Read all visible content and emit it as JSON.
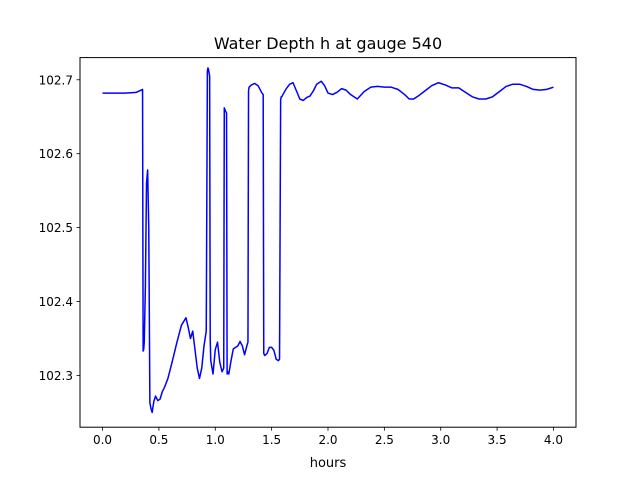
{
  "chart_data": {
    "type": "line",
    "title": "Water Depth h at gauge 540",
    "xlabel": "hours",
    "ylabel": "",
    "xlim": [
      -0.2,
      4.2
    ],
    "ylim": [
      102.23,
      102.73
    ],
    "xticks": [
      0.0,
      0.5,
      1.0,
      1.5,
      2.0,
      2.5,
      3.0,
      3.5,
      4.0
    ],
    "xtick_labels": [
      "0.0",
      "0.5",
      "1.0",
      "1.5",
      "2.0",
      "2.5",
      "3.0",
      "3.5",
      "4.0"
    ],
    "yticks": [
      102.3,
      102.4,
      102.5,
      102.6,
      102.7
    ],
    "ytick_labels": [
      "102.3",
      "102.4",
      "102.5",
      "102.6",
      "102.7"
    ],
    "grid": false,
    "series": [
      {
        "color": "#0000ff",
        "x": [
          0.0,
          0.1,
          0.2,
          0.3,
          0.355,
          0.36,
          0.365,
          0.37,
          0.38,
          0.39,
          0.4,
          0.41,
          0.42,
          0.43,
          0.44,
          0.455,
          0.47,
          0.49,
          0.51,
          0.53,
          0.55,
          0.58,
          0.62,
          0.66,
          0.7,
          0.74,
          0.76,
          0.78,
          0.8,
          0.82,
          0.84,
          0.86,
          0.88,
          0.9,
          0.92,
          0.93,
          0.935,
          0.94,
          0.95,
          0.955,
          0.96,
          0.98,
          1.0,
          1.02,
          1.04,
          1.06,
          1.075,
          1.08,
          1.085,
          1.09,
          1.1,
          1.105,
          1.11,
          1.12,
          1.14,
          1.16,
          1.18,
          1.2,
          1.22,
          1.24,
          1.26,
          1.28,
          1.29,
          1.295,
          1.3,
          1.32,
          1.35,
          1.38,
          1.41,
          1.425,
          1.43,
          1.435,
          1.44,
          1.46,
          1.48,
          1.5,
          1.52,
          1.54,
          1.56,
          1.57,
          1.58,
          1.585,
          1.59,
          1.6,
          1.63,
          1.66,
          1.69,
          1.72,
          1.75,
          1.78,
          1.81,
          1.84,
          1.87,
          1.9,
          1.94,
          1.97,
          2.0,
          2.04,
          2.08,
          2.12,
          2.16,
          2.2,
          2.26,
          2.32,
          2.38,
          2.44,
          2.5,
          2.56,
          2.62,
          2.68,
          2.72,
          2.76,
          2.8,
          2.86,
          2.92,
          2.98,
          3.04,
          3.1,
          3.16,
          3.22,
          3.28,
          3.34,
          3.4,
          3.46,
          3.52,
          3.58,
          3.64,
          3.7,
          3.76,
          3.82,
          3.88,
          3.94,
          4.0
        ],
        "values": [
          102.682,
          102.682,
          102.682,
          102.683,
          102.687,
          102.333,
          102.335,
          102.345,
          102.42,
          102.56,
          102.578,
          102.5,
          102.263,
          102.255,
          102.25,
          102.265,
          102.272,
          102.266,
          102.268,
          102.278,
          102.284,
          102.296,
          102.32,
          102.345,
          102.368,
          102.378,
          102.365,
          102.35,
          102.36,
          102.335,
          102.31,
          102.296,
          102.31,
          102.34,
          102.36,
          102.712,
          102.716,
          102.714,
          102.705,
          102.35,
          102.32,
          102.302,
          102.335,
          102.345,
          102.318,
          102.305,
          102.31,
          102.662,
          102.66,
          102.658,
          102.655,
          102.302,
          102.305,
          102.302,
          102.32,
          102.336,
          102.338,
          102.34,
          102.346,
          102.34,
          102.328,
          102.34,
          102.345,
          102.685,
          102.69,
          102.693,
          102.695,
          102.692,
          102.683,
          102.68,
          102.33,
          102.328,
          102.327,
          102.33,
          102.338,
          102.338,
          102.334,
          102.322,
          102.32,
          102.322,
          102.673,
          102.677,
          102.677,
          102.68,
          102.688,
          102.694,
          102.696,
          102.685,
          102.674,
          102.672,
          102.676,
          102.678,
          102.685,
          102.694,
          102.698,
          102.692,
          102.682,
          102.68,
          102.683,
          102.688,
          102.686,
          102.68,
          102.674,
          102.684,
          102.69,
          102.691,
          102.69,
          102.69,
          102.687,
          102.68,
          102.674,
          102.674,
          102.678,
          102.685,
          102.692,
          102.696,
          102.693,
          102.689,
          102.689,
          102.683,
          102.677,
          102.674,
          102.674,
          102.677,
          102.684,
          102.691,
          102.694,
          102.694,
          102.691,
          102.687,
          102.686,
          102.687,
          102.69
        ]
      }
    ]
  }
}
